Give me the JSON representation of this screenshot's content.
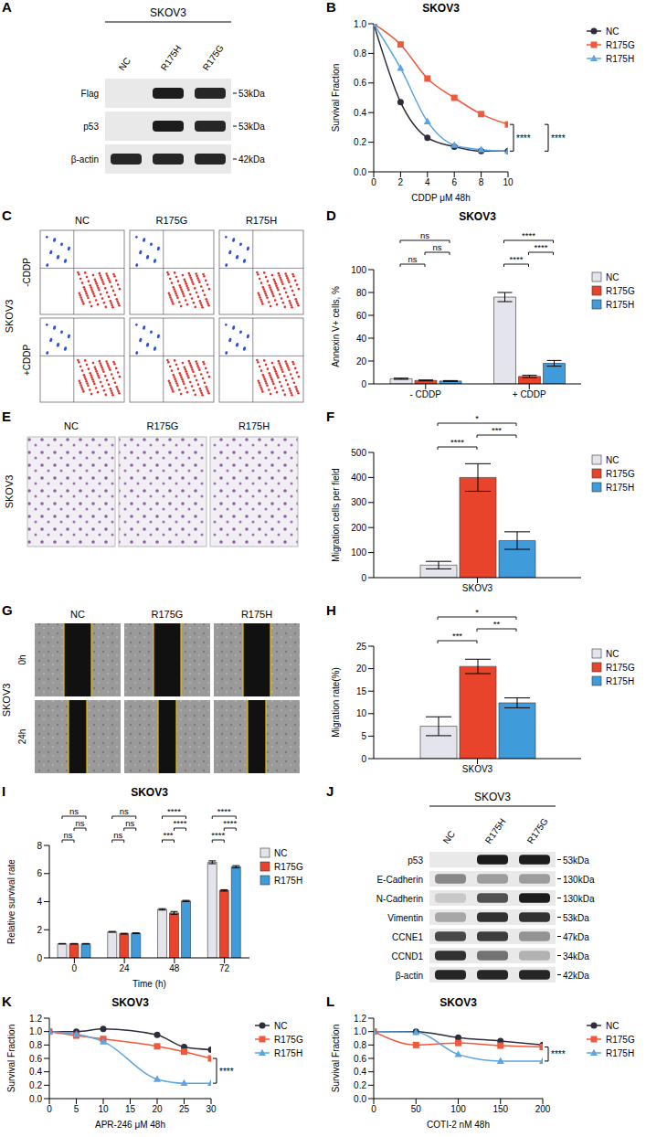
{
  "chart_data": [
    {
      "label": "B",
      "type": "line",
      "title": "SKOV3",
      "x_label": "CDDP μM 48h",
      "y_label": "Survival Fraction",
      "xlim": [
        0,
        10
      ],
      "xticks": [
        0,
        2,
        4,
        6,
        8,
        10
      ],
      "ylim": [
        0,
        1
      ],
      "yticks": [
        {
          "value": 0,
          "label": "0.0"
        },
        0.2,
        0.4,
        0.6,
        0.8,
        {
          "value": 1,
          "label": "1.0"
        }
      ],
      "grid": false,
      "legend": "right",
      "x": [
        0,
        2,
        4,
        6,
        8,
        10
      ],
      "series": [
        {
          "name": "NC",
          "color": "#2d2d3c",
          "marker": "circle",
          "values": [
            1,
            0.47,
            0.23,
            0.17,
            0.14,
            0.14
          ]
        },
        {
          "name": "R175G",
          "color": "#f05a3c",
          "marker": "square",
          "values": [
            1,
            0.86,
            0.63,
            0.5,
            0.39,
            0.32
          ]
        },
        {
          "name": "R175H",
          "color": "#5da5e0",
          "marker": "triangle",
          "values": [
            1,
            0.7,
            0.34,
            0.18,
            0.15,
            0.14
          ]
        }
      ],
      "annotations": [
        {
          "pair": [
            "R175G",
            "NC"
          ],
          "text": "****"
        },
        {
          "pair": [
            "R175G",
            "R175H"
          ],
          "text": "****"
        }
      ]
    },
    {
      "label": "D",
      "type": "bar",
      "title": "SKOV3",
      "y_label": "Annexin V+ cells, %",
      "categories": [
        "- CDDP",
        "+ CDDP"
      ],
      "ylim": [
        0,
        100
      ],
      "yticks": [
        0,
        20,
        40,
        60,
        80,
        100
      ],
      "grid": false,
      "legend": "right",
      "series": [
        {
          "name": "NC",
          "color": "#e4e4ec",
          "values": [
            4.5,
            76
          ],
          "errors": [
            0.5,
            4
          ]
        },
        {
          "name": "R175G",
          "color": "#e8442c",
          "values": [
            3,
            6.5
          ],
          "errors": [
            0.4,
            1
          ]
        },
        {
          "name": "R175H",
          "color": "#3f9bd9",
          "values": [
            2.5,
            18
          ],
          "errors": [
            0.4,
            2.5
          ]
        }
      ],
      "annotations": [
        {
          "category": "- CDDP",
          "pair": [
            "NC",
            "R175G"
          ],
          "text": "ns"
        },
        {
          "category": "- CDDP",
          "pair": [
            "R175G",
            "R175H"
          ],
          "text": "ns"
        },
        {
          "category": "- CDDP",
          "pair": [
            "NC",
            "R175H"
          ],
          "text": "ns"
        },
        {
          "category": "+ CDDP",
          "pair": [
            "NC",
            "R175G"
          ],
          "text": "****"
        },
        {
          "category": "+ CDDP",
          "pair": [
            "R175G",
            "R175H"
          ],
          "text": "****"
        },
        {
          "category": "+ CDDP",
          "pair": [
            "NC",
            "R175H"
          ],
          "text": "****"
        }
      ]
    },
    {
      "label": "F",
      "type": "bar",
      "y_label": "Migration cells per field",
      "categories": [
        "SKOV3"
      ],
      "ylim": [
        0,
        500
      ],
      "yticks": [
        0,
        100,
        200,
        300,
        400,
        500
      ],
      "grid": false,
      "legend": "right",
      "series": [
        {
          "name": "NC",
          "color": "#e4e4ec",
          "values": [
            50
          ],
          "errors": [
            15
          ]
        },
        {
          "name": "R175G",
          "color": "#e8442c",
          "values": [
            400
          ],
          "errors": [
            55
          ]
        },
        {
          "name": "R175H",
          "color": "#3f9bd9",
          "values": [
            148
          ],
          "errors": [
            35
          ]
        }
      ],
      "annotations": [
        {
          "category": "SKOV3",
          "pair": [
            "NC",
            "R175G"
          ],
          "text": "****"
        },
        {
          "category": "SKOV3",
          "pair": [
            "R175G",
            "R175H"
          ],
          "text": "***"
        },
        {
          "category": "SKOV3",
          "pair": [
            "NC",
            "R175H"
          ],
          "text": "*"
        }
      ]
    },
    {
      "label": "H",
      "type": "bar",
      "y_label": "Migration rate(%)",
      "categories": [
        "SKOV3"
      ],
      "ylim": [
        0,
        25
      ],
      "yticks": [
        0,
        5,
        10,
        15,
        20,
        25
      ],
      "grid": false,
      "legend": "right",
      "series": [
        {
          "name": "NC",
          "color": "#e4e4ec",
          "values": [
            7.2
          ],
          "errors": [
            2.1
          ]
        },
        {
          "name": "R175G",
          "color": "#e8442c",
          "values": [
            20.5
          ],
          "errors": [
            1.6
          ]
        },
        {
          "name": "R175H",
          "color": "#3f9bd9",
          "values": [
            12.4
          ],
          "errors": [
            1.1
          ]
        }
      ],
      "annotations": [
        {
          "category": "SKOV3",
          "pair": [
            "NC",
            "R175G"
          ],
          "text": "***"
        },
        {
          "category": "SKOV3",
          "pair": [
            "R175G",
            "R175H"
          ],
          "text": "**"
        },
        {
          "category": "SKOV3",
          "pair": [
            "NC",
            "R175H"
          ],
          "text": "*"
        }
      ]
    },
    {
      "label": "I",
      "type": "bar",
      "title": "SKOV3",
      "x_label": "Time (h)",
      "y_label": "Relative survival rate",
      "categories": [
        "0",
        "24",
        "48",
        "72"
      ],
      "ylim": [
        0,
        8
      ],
      "yticks": [
        0,
        2,
        4,
        6,
        8
      ],
      "grid": false,
      "legend": "right",
      "series": [
        {
          "name": "NC",
          "color": "#e4e4ec",
          "values": [
            1,
            1.85,
            3.45,
            6.8
          ],
          "errors": [
            0.02,
            0.03,
            0.05,
            0.1
          ]
        },
        {
          "name": "R175G",
          "color": "#e8442c",
          "values": [
            1,
            1.72,
            3.2,
            4.8
          ],
          "errors": [
            0.02,
            0.03,
            0.1,
            0.05
          ]
        },
        {
          "name": "R175H",
          "color": "#3f9bd9",
          "values": [
            1,
            1.75,
            4.05,
            6.48
          ],
          "errors": [
            0.02,
            0.03,
            0.04,
            0.08
          ]
        }
      ],
      "annotations": [
        {
          "category": "0",
          "pair": [
            "NC",
            "R175G"
          ],
          "text": "ns"
        },
        {
          "category": "0",
          "pair": [
            "R175G",
            "R175H"
          ],
          "text": "ns"
        },
        {
          "category": "0",
          "pair": [
            "NC",
            "R175H"
          ],
          "text": "ns"
        },
        {
          "category": "24",
          "pair": [
            "NC",
            "R175G"
          ],
          "text": "ns"
        },
        {
          "category": "24",
          "pair": [
            "R175G",
            "R175H"
          ],
          "text": "ns"
        },
        {
          "category": "24",
          "pair": [
            "NC",
            "R175H"
          ],
          "text": "ns"
        },
        {
          "category": "48",
          "pair": [
            "NC",
            "R175G"
          ],
          "text": "***"
        },
        {
          "category": "48",
          "pair": [
            "R175G",
            "R175H"
          ],
          "text": "****"
        },
        {
          "category": "48",
          "pair": [
            "NC",
            "R175H"
          ],
          "text": "****"
        },
        {
          "category": "72",
          "pair": [
            "NC",
            "R175G"
          ],
          "text": "****"
        },
        {
          "category": "72",
          "pair": [
            "R175G",
            "R175H"
          ],
          "text": "****"
        },
        {
          "category": "72",
          "pair": [
            "NC",
            "R175H"
          ],
          "text": "****"
        }
      ]
    },
    {
      "label": "K",
      "type": "line",
      "title": "SKOV3",
      "x_label": "APR-246 μM 48h",
      "y_label": "Survival Fraction",
      "xlim": [
        0,
        30
      ],
      "xticks": [
        0,
        5,
        10,
        15,
        20,
        25,
        30
      ],
      "ylim": [
        0,
        1.2
      ],
      "yticks": [
        {
          "value": 0,
          "label": "0.0"
        },
        0.2,
        0.4,
        0.6,
        0.8,
        {
          "value": 1,
          "label": "1.0"
        },
        1.2
      ],
      "grid": false,
      "legend": "right",
      "x": [
        0,
        5,
        10,
        20,
        25,
        30
      ],
      "series": [
        {
          "name": "NC",
          "color": "#2d2d3c",
          "marker": "circle",
          "values": [
            1,
            1,
            1.04,
            0.95,
            0.77,
            0.73
          ]
        },
        {
          "name": "R175G",
          "color": "#f05a3c",
          "marker": "square",
          "values": [
            1,
            0.94,
            0.89,
            0.78,
            0.7,
            0.6
          ]
        },
        {
          "name": "R175H",
          "color": "#5da5e0",
          "marker": "triangle",
          "values": [
            1,
            0.96,
            0.85,
            0.29,
            0.23,
            0.23
          ]
        }
      ],
      "annotations": [
        {
          "pair": [
            "R175G",
            "R175H"
          ],
          "text": "****"
        }
      ]
    },
    {
      "label": "L",
      "type": "line",
      "title": "SKOV3",
      "x_label": "COTI-2 nM 48h",
      "y_label": "Survival Fraction",
      "xlim": [
        0,
        200
      ],
      "xticks": [
        0,
        50,
        100,
        150,
        200
      ],
      "ylim": [
        0,
        1.2
      ],
      "yticks": [
        {
          "value": 0,
          "label": "0.0"
        },
        0.2,
        0.4,
        0.6,
        0.8,
        {
          "value": 1,
          "label": "1.0"
        },
        1.2
      ],
      "grid": false,
      "legend": "right",
      "x": [
        0,
        50,
        100,
        150,
        200
      ],
      "series": [
        {
          "name": "NC",
          "color": "#2d2d3c",
          "marker": "circle",
          "values": [
            1,
            1,
            0.91,
            0.86,
            0.8
          ]
        },
        {
          "name": "R175G",
          "color": "#f05a3c",
          "marker": "square",
          "values": [
            1,
            0.8,
            0.83,
            0.79,
            0.77
          ]
        },
        {
          "name": "R175H",
          "color": "#5da5e0",
          "marker": "triangle",
          "values": [
            1,
            0.99,
            0.66,
            0.56,
            0.56
          ]
        }
      ],
      "annotations": [
        {
          "pair": [
            "R175G",
            "R175H"
          ],
          "text": "****"
        }
      ]
    }
  ],
  "blots": [
    {
      "label": "A",
      "cell_line": "SKOV3",
      "lanes": [
        "NC",
        "R175H",
        "R175G"
      ],
      "rows": [
        {
          "name": "Flag",
          "mw": "53kDa",
          "bands": [
            0,
            0.95,
            0.9
          ]
        },
        {
          "name": "p53",
          "mw": "53kDa",
          "bands": [
            0,
            0.95,
            0.9
          ]
        },
        {
          "name": "β-actin",
          "mw": "42kDa",
          "bands": [
            0.9,
            0.9,
            0.9
          ]
        }
      ]
    },
    {
      "label": "J",
      "cell_line": "SKOV3",
      "lanes": [
        "NC",
        "R175H",
        "R175G"
      ],
      "rows": [
        {
          "name": "p53",
          "mw": "53kDa",
          "bands": [
            0,
            0.95,
            0.95
          ]
        },
        {
          "name": "E-Cadherin",
          "mw": "130kDa",
          "bands": [
            0.45,
            0.35,
            0.35
          ]
        },
        {
          "name": "N-Cadherin",
          "mw": "130kDa",
          "bands": [
            0.15,
            0.7,
            0.95
          ]
        },
        {
          "name": "Vimentin",
          "mw": "53kDa",
          "bands": [
            0.3,
            0.85,
            0.85
          ]
        },
        {
          "name": "CCNE1",
          "mw": "47kDa",
          "bands": [
            0.75,
            0.8,
            0.4
          ]
        },
        {
          "name": "CCND1",
          "mw": "34kDa",
          "bands": [
            0.85,
            0.55,
            0.25
          ]
        },
        {
          "name": "β-actin",
          "mw": "42kDa",
          "bands": [
            0.9,
            0.9,
            0.9
          ]
        }
      ]
    }
  ],
  "flow": {
    "label": "C",
    "cell_line": "SKOV3",
    "columns": [
      "NC",
      "R175G",
      "R175H"
    ],
    "rows": [
      "-CDDP",
      "+CDDP"
    ]
  },
  "images": [
    {
      "label": "E",
      "cell_line": "SKOV3",
      "columns": [
        "NC",
        "R175G",
        "R175H"
      ]
    },
    {
      "label": "G",
      "cell_line": "SKOV3",
      "columns": [
        "NC",
        "R175G",
        "R175H"
      ],
      "rows": [
        "0h",
        "24h"
      ]
    }
  ]
}
